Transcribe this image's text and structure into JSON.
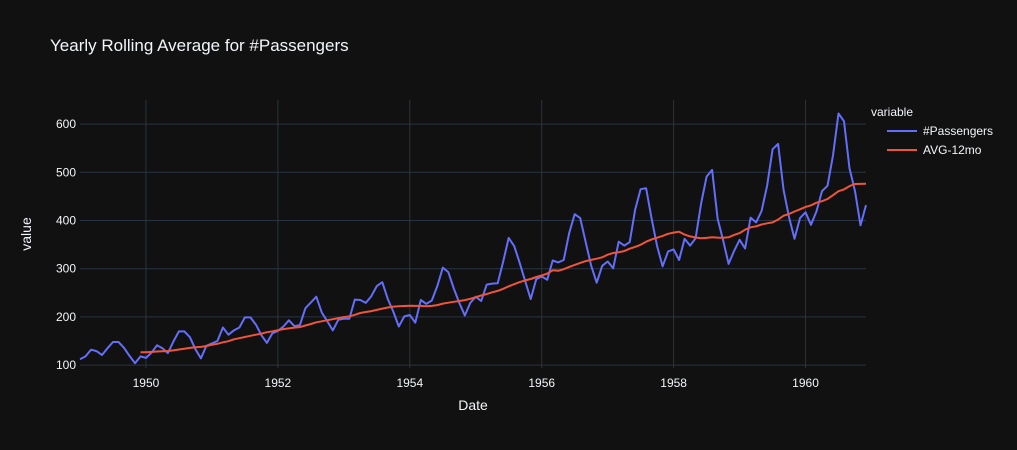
{
  "chart_data": {
    "type": "line",
    "title": "Yearly Rolling Average for #Passengers",
    "xlabel": "Date",
    "ylabel": "value",
    "x_start": "1949-01",
    "x_frequency": "monthly",
    "xlim": [
      "1949-01",
      "1960-12"
    ],
    "ylim": [
      94,
      650
    ],
    "x_ticks": [
      "1950",
      "1952",
      "1954",
      "1956",
      "1958",
      "1960"
    ],
    "y_ticks": [
      100,
      200,
      300,
      400,
      500,
      600
    ],
    "grid": true,
    "legend": {
      "title": "variable",
      "position": "right"
    },
    "colors": {
      "background": "#111111",
      "grid": "#283442",
      "text": "#f2f5fa",
      "passengers": "#636efa",
      "avg": "#ef553b"
    },
    "series": [
      {
        "name": "#Passengers",
        "values": [
          112,
          118,
          132,
          129,
          121,
          135,
          148,
          148,
          136,
          119,
          104,
          118,
          115,
          126,
          141,
          135,
          125,
          149,
          170,
          170,
          158,
          133,
          114,
          140,
          145,
          150,
          178,
          163,
          172,
          178,
          199,
          199,
          184,
          162,
          146,
          166,
          171,
          180,
          193,
          181,
          183,
          218,
          230,
          242,
          209,
          191,
          172,
          194,
          196,
          196,
          236,
          235,
          229,
          243,
          264,
          272,
          237,
          211,
          180,
          201,
          204,
          188,
          235,
          227,
          234,
          264,
          302,
          293,
          259,
          229,
          203,
          229,
          242,
          233,
          267,
          269,
          270,
          315,
          364,
          347,
          312,
          274,
          237,
          278,
          284,
          277,
          317,
          313,
          318,
          374,
          413,
          405,
          355,
          306,
          271,
          306,
          315,
          301,
          356,
          348,
          355,
          422,
          465,
          467,
          404,
          347,
          305,
          336,
          340,
          318,
          362,
          348,
          363,
          435,
          491,
          505,
          404,
          359,
          310,
          337,
          360,
          342,
          406,
          396,
          420,
          472,
          548,
          559,
          463,
          407,
          362,
          405,
          417,
          391,
          419,
          461,
          472,
          535,
          622,
          606,
          508,
          461,
          390,
          432
        ]
      },
      {
        "name": "AVG-12mo",
        "values": [
          null,
          null,
          null,
          null,
          null,
          null,
          null,
          null,
          null,
          null,
          null,
          126.7,
          126.7,
          127.3,
          128.3,
          128.8,
          129.2,
          130.5,
          132.3,
          134.1,
          135.8,
          137.0,
          137.8,
          139.7,
          142.2,
          144.2,
          147.3,
          149.6,
          153.5,
          155.9,
          158.3,
          160.8,
          163.0,
          165.4,
          168.2,
          170.2,
          172.4,
          174.8,
          176.2,
          177.8,
          178.8,
          182.2,
          185.2,
          188.8,
          190.8,
          193.2,
          195.2,
          197.6,
          199.7,
          201.1,
          204.4,
          208.1,
          210.1,
          212.0,
          214.6,
          217.2,
          219.5,
          221.3,
          222.1,
          222.7,
          223.3,
          222.8,
          222.8,
          222.2,
          222.8,
          224.5,
          227.7,
          229.5,
          231.4,
          232.9,
          234.8,
          237.6,
          240.9,
          244.7,
          247.4,
          251.0,
          253.9,
          258.3,
          263.5,
          267.8,
          272.2,
          275.8,
          278.6,
          282.8,
          286.1,
          289.8,
          296.6,
          295.6,
          299.0,
          303.8,
          307.8,
          312.0,
          315.8,
          318.3,
          320.8,
          323.7,
          329.0,
          332.6,
          334.2,
          336.5,
          341.4,
          345.2,
          349.5,
          356.1,
          360.9,
          364.3,
          368.0,
          372.5,
          375.0,
          376.8,
          370.8,
          367.0,
          364.8,
          363.1,
          364.0,
          365.1,
          364.6,
          364.4,
          365.2,
          370.1,
          373.8,
          381.0,
          385.8,
          388.0,
          391.8,
          394.2,
          396.0,
          401.8,
          410.0,
          413.4,
          418.7,
          423.2,
          428.3,
          431.6,
          437.0,
          440.0,
          444.7,
          452.5,
          460.8,
          464.5,
          471.3,
          475.8,
          476.0,
          476.2
        ]
      }
    ]
  }
}
